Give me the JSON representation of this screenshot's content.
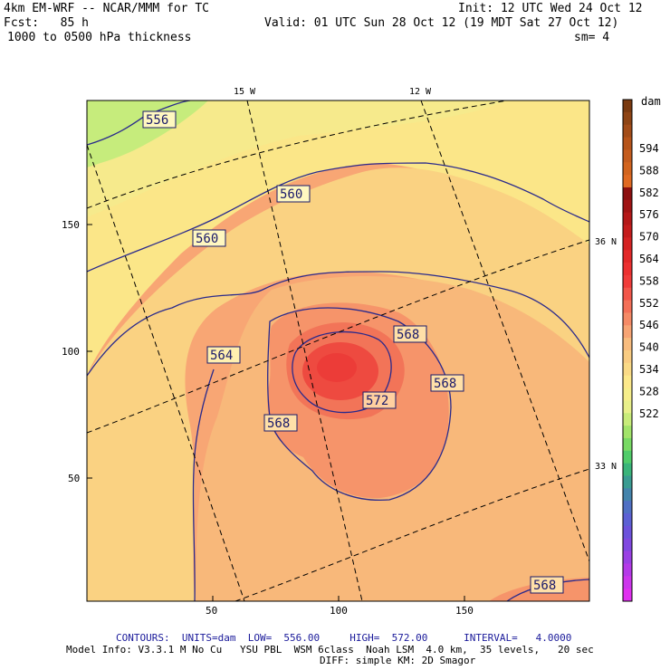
{
  "header": {
    "model": "4km EM-WRF -- NCAR/MMM for TC",
    "init": "Init: 12 UTC Wed 24 Oct 12",
    "fcst": "Fcst:   85 h",
    "valid": "Valid: 01 UTC Sun 28 Oct 12 (19 MDT Sat 27 Oct 12)",
    "field": "1000 to 0500 hPa thickness",
    "smoothing": "sm= 4"
  },
  "map": {
    "lon_labels": [
      "15 W",
      "12 W"
    ],
    "lat_labels": [
      "36 N",
      "33 N"
    ],
    "x_ticks": [
      "50",
      "100",
      "150"
    ],
    "y_ticks": [
      "150",
      "100",
      "50"
    ],
    "contour_labels": [
      "556",
      "560",
      "560",
      "564",
      "568",
      "568",
      "568",
      "572",
      "568"
    ]
  },
  "colorbar": {
    "units": "dam",
    "labels": [
      "594",
      "588",
      "582",
      "576",
      "570",
      "564",
      "558",
      "552",
      "546",
      "540",
      "534",
      "528",
      "522"
    ],
    "colors": [
      "#7a3a10",
      "#8e4414",
      "#a24c18",
      "#b6541a",
      "#c45c1e",
      "#d2641e",
      "#e06a22",
      "#8c1010",
      "#a01414",
      "#b41818",
      "#c41c1c",
      "#d42222",
      "#e22828",
      "#ec3030",
      "#f03c3a",
      "#f2564a",
      "#f47058",
      "#f58a66",
      "#f7a474",
      "#f8bc7e",
      "#f9cc82",
      "#fada86",
      "#fce88a",
      "#f6ee8a",
      "#e8f08a",
      "#c8ec7a",
      "#a2e46a",
      "#78da64",
      "#50cc6a",
      "#3ab47a",
      "#3a9c92",
      "#4484ac",
      "#5070c4",
      "#5c60d4",
      "#6c52dc",
      "#8048e0",
      "#9a40e4",
      "#b43ae8",
      "#cc36ec",
      "#e030f0"
    ]
  },
  "footer": {
    "contours": "CONTOURS:  UNITS=dam  LOW=  556.00     HIGH=  572.00      INTERVAL=   4.0000",
    "model_info": "Model Info: V3.3.1 M No Cu   YSU PBL  WSM 6class  Noah LSM  4.0 km,  35 levels,   20 sec",
    "diff": "DIFF: simple KM: 2D Smagor"
  }
}
